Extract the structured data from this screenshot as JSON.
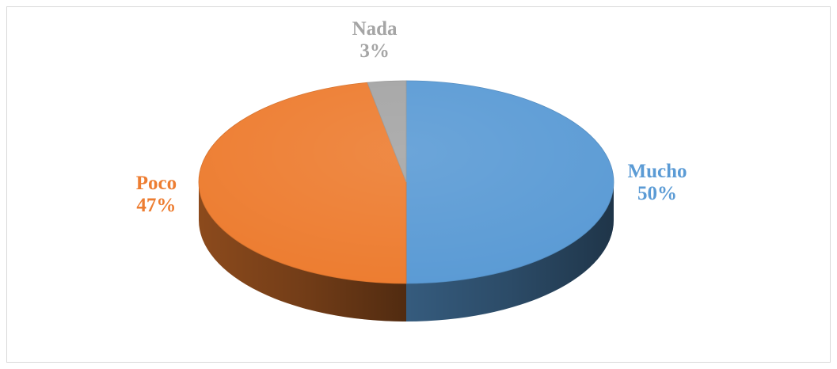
{
  "chart_data": {
    "type": "pie",
    "title": "",
    "categories": [
      "Mucho",
      "Poco",
      "Nada"
    ],
    "values": [
      50,
      47,
      3
    ],
    "value_labels": [
      "50%",
      "47%",
      "3%"
    ],
    "colors": [
      "#5B9BD5",
      "#ED7D31",
      "#A5A5A5"
    ],
    "style": "3d",
    "legend": "none"
  }
}
